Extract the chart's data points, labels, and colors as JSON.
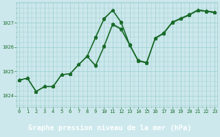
{
  "title": "Graphe pression niveau de la mer (hPa)",
  "background_color": "#cce8ec",
  "grid_color": "#99cccc",
  "line_color": "#1a6b2a",
  "xlim": [
    -0.3,
    23.3
  ],
  "ylim": [
    1023.55,
    1027.85
  ],
  "yticks": [
    1024,
    1025,
    1026,
    1027
  ],
  "xticks": [
    0,
    1,
    2,
    3,
    4,
    5,
    6,
    7,
    8,
    9,
    10,
    11,
    12,
    13,
    14,
    15,
    16,
    17,
    18,
    19,
    20,
    21,
    22,
    23
  ],
  "series": [
    [
      1024.65,
      1024.72,
      1024.18,
      1024.38,
      1024.38,
      1024.87,
      1024.9,
      1025.28,
      1025.62,
      1025.25,
      1026.05,
      1026.95,
      1026.75,
      1026.1,
      1025.45,
      1025.37,
      1026.37,
      1026.58,
      1027.02,
      1027.18,
      1027.33,
      1027.52,
      1027.48,
      1027.43
    ],
    [
      1024.65,
      1024.72,
      1024.18,
      1024.38,
      1024.38,
      1024.87,
      1024.9,
      1025.28,
      1025.62,
      1026.42,
      1027.18,
      1027.52,
      1027.02,
      1026.1,
      1025.45,
      1025.37,
      1026.37,
      1026.58,
      1027.02,
      1027.18,
      1027.33,
      1027.52,
      1027.48,
      1027.43
    ],
    [
      1024.65,
      1024.72,
      1024.18,
      1024.38,
      1024.38,
      1024.87,
      1024.9,
      1025.28,
      1025.62,
      1025.22,
      1026.02,
      1026.92,
      1026.72,
      1026.08,
      1025.43,
      1025.35,
      1026.35,
      1026.56,
      1027.0,
      1027.16,
      1027.31,
      1027.5,
      1027.46,
      1027.41
    ],
    [
      1024.65,
      1024.72,
      1024.18,
      1024.38,
      1024.38,
      1024.87,
      1024.9,
      1025.28,
      1025.62,
      1026.38,
      1027.15,
      1027.5,
      1027.0,
      1026.08,
      1025.43,
      1025.35,
      1026.35,
      1026.56,
      1027.0,
      1027.16,
      1027.31,
      1027.5,
      1027.46,
      1027.41
    ]
  ],
  "marker": "*",
  "marker_size": 3.5,
  "line_width": 0.9,
  "title_fontsize": 7.5,
  "tick_fontsize": 5.0,
  "tick_color": "#1a6b2a",
  "title_color": "white",
  "title_bg": "#2d7a3a",
  "title_bar_height": 0.13
}
